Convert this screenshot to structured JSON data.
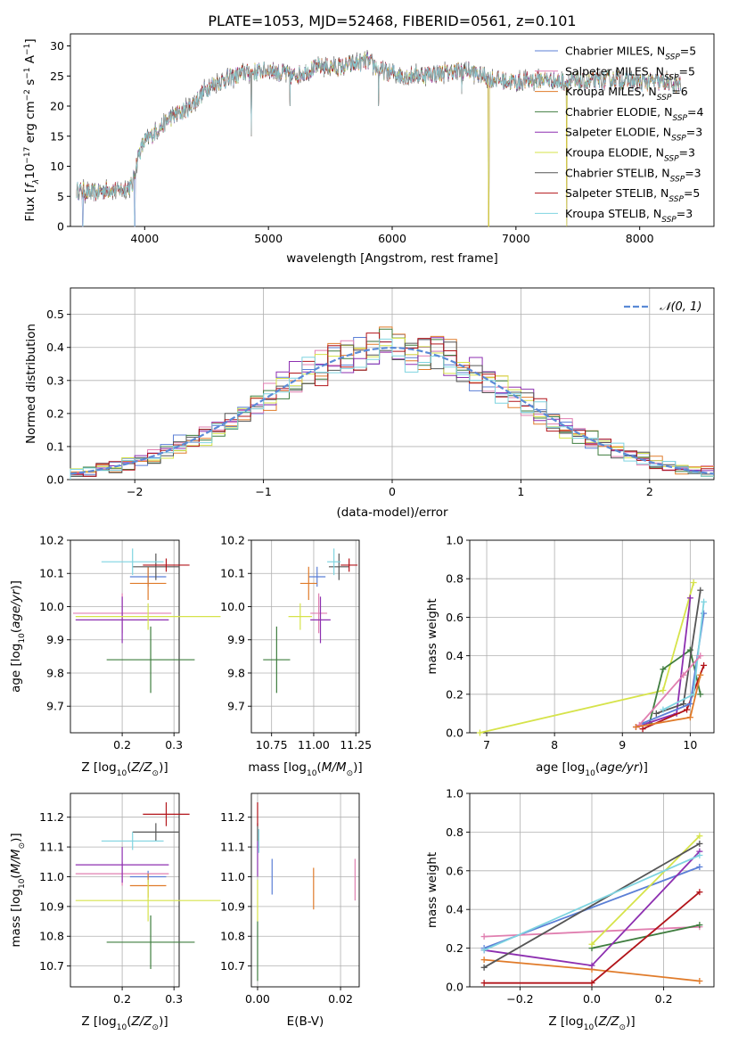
{
  "figure_title": "PLATE=1053, MJD=52468, FIBERID=0561, z=0.101",
  "colors": {
    "Chabrier MILES": "#5b7fd6",
    "Salpeter MILES": "#e07fb0",
    "Kroupa MILES": "#e07b2a",
    "Chabrier ELODIE": "#3f7d3f",
    "Salpeter ELODIE": "#8d2fb0",
    "Kroupa ELODIE": "#d6e34a",
    "Chabrier STELIB": "#555555",
    "Salpeter STELIB": "#b2141a",
    "Kroupa STELIB": "#7fd4e0",
    "gauss": "#5b8ad6"
  },
  "chart_data": [
    {
      "id": "spectrum",
      "type": "line",
      "title": "PLATE=1053, MJD=52468, FIBERID=0561, z=0.101",
      "xlabel": "wavelength [Angstrom, rest frame]",
      "ylabel": "Flux [f_λ10^-17 erg cm^-2 s^-1 A^-1]",
      "xlim": [
        3400,
        8600
      ],
      "ylim": [
        0,
        32
      ],
      "xticks": [
        4000,
        5000,
        6000,
        7000,
        8000
      ],
      "yticks": [
        0,
        5,
        10,
        15,
        20,
        25,
        30
      ],
      "legend_position": "top-right",
      "legend": [
        {
          "label": "Chabrier MILES, N",
          "sub": "SSP",
          "suffix": "=5",
          "key": "Chabrier MILES"
        },
        {
          "label": "Salpeter MILES, N",
          "sub": "SSP",
          "suffix": "=5",
          "key": "Salpeter MILES"
        },
        {
          "label": "Kroupa MILES, N",
          "sub": "SSP",
          "suffix": "=6",
          "key": "Kroupa MILES"
        },
        {
          "label": "Chabrier ELODIE, N",
          "sub": "SSP",
          "suffix": "=4",
          "key": "Chabrier ELODIE"
        },
        {
          "label": "Salpeter ELODIE, N",
          "sub": "SSP",
          "suffix": "=3",
          "key": "Salpeter ELODIE"
        },
        {
          "label": "Kroupa ELODIE, N",
          "sub": "SSP",
          "suffix": "=3",
          "key": "Kroupa ELODIE"
        },
        {
          "label": "Chabrier STELIB, N",
          "sub": "SSP",
          "suffix": "=3",
          "key": "Chabrier STELIB"
        },
        {
          "label": "Salpeter STELIB, N",
          "sub": "SSP",
          "suffix": "=5",
          "key": "Salpeter STELIB"
        },
        {
          "label": "Kroupa STELIB, N",
          "sub": "SSP",
          "suffix": "=3",
          "key": "Kroupa STELIB"
        }
      ],
      "continuum": [
        [
          3450,
          6
        ],
        [
          3600,
          5.5
        ],
        [
          3700,
          6.2
        ],
        [
          3800,
          6
        ],
        [
          3900,
          6.8
        ],
        [
          3950,
          12
        ],
        [
          4000,
          14
        ],
        [
          4100,
          16
        ],
        [
          4200,
          18
        ],
        [
          4300,
          19
        ],
        [
          4400,
          20.5
        ],
        [
          4500,
          23
        ],
        [
          4600,
          24
        ],
        [
          4800,
          25.5
        ],
        [
          5000,
          26
        ],
        [
          5200,
          25
        ],
        [
          5400,
          26.5
        ],
        [
          5600,
          26.5
        ],
        [
          5800,
          27.5
        ],
        [
          5900,
          26
        ],
        [
          6100,
          25
        ],
        [
          6400,
          25.5
        ],
        [
          6600,
          26
        ],
        [
          6800,
          24.5
        ],
        [
          7000,
          24
        ],
        [
          7200,
          24.5
        ],
        [
          7400,
          24
        ],
        [
          7600,
          24
        ],
        [
          7800,
          24.5
        ],
        [
          8000,
          24
        ],
        [
          8200,
          24
        ],
        [
          8330,
          23.5
        ]
      ],
      "dips": [
        [
          3500,
          0
        ],
        [
          3920,
          0
        ],
        [
          4861,
          15
        ],
        [
          5175,
          20
        ],
        [
          5890,
          20
        ],
        [
          6563,
          22
        ],
        [
          6780,
          0
        ],
        [
          7410,
          0
        ]
      ]
    },
    {
      "id": "residuals",
      "type": "histogram",
      "xlabel": "(data-model)/error",
      "ylabel": "Normed distribution",
      "xlim": [
        -2.5,
        2.5
      ],
      "ylim": [
        0,
        0.58
      ],
      "xticks": [
        -2,
        -1,
        0,
        1,
        2
      ],
      "yticks": [
        0.0,
        0.1,
        0.2,
        0.3,
        0.4,
        0.5
      ],
      "legend_label": "𝒩(0, 1)",
      "legend_position": "top-right",
      "bin_width": 0.1,
      "series_keys": [
        "Chabrier MILES",
        "Salpeter MILES",
        "Kroupa MILES",
        "Chabrier ELODIE",
        "Salpeter ELODIE",
        "Kroupa ELODIE",
        "Chabrier STELIB",
        "Salpeter STELIB",
        "Kroupa STELIB"
      ]
    },
    {
      "id": "age-vs-Z",
      "type": "scatter",
      "xlabel": "Z [log10(Z/Z⊙)]",
      "ylabel": "age  [log10(age/yr)]",
      "xlim": [
        0.1,
        0.31
      ],
      "ylim": [
        9.62,
        10.2
      ],
      "xticks": [
        0.2,
        0.3
      ],
      "yticks": [
        9.7,
        9.8,
        9.9,
        10.0,
        10.1,
        10.2
      ],
      "points": [
        {
          "key": "Chabrier MILES",
          "x": 0.25,
          "y": 10.09,
          "xerr": 0.035,
          "yerr": 0.03
        },
        {
          "key": "Salpeter MILES",
          "x": 0.2,
          "y": 9.98,
          "xerr": 0.095,
          "yerr": 0.06
        },
        {
          "key": "Kroupa MILES",
          "x": 0.25,
          "y": 10.07,
          "xerr": 0.035,
          "yerr": 0.05
        },
        {
          "key": "Chabrier ELODIE",
          "x": 0.255,
          "y": 9.84,
          "xerr": 0.085,
          "yerr": 0.1
        },
        {
          "key": "Salpeter ELODIE",
          "x": 0.2,
          "y": 9.96,
          "xerr": 0.09,
          "yerr": 0.07
        },
        {
          "key": "Kroupa ELODIE",
          "x": 0.25,
          "y": 9.97,
          "xerr": 0.14,
          "yerr": 0.04
        },
        {
          "key": "Chabrier STELIB",
          "x": 0.265,
          "y": 10.12,
          "xerr": 0.045,
          "yerr": 0.04
        },
        {
          "key": "Salpeter STELIB",
          "x": 0.285,
          "y": 10.125,
          "xerr": 0.045,
          "yerr": 0.02
        },
        {
          "key": "Kroupa STELIB",
          "x": 0.22,
          "y": 10.135,
          "xerr": 0.06,
          "yerr": 0.04
        }
      ]
    },
    {
      "id": "age-vs-mass",
      "type": "scatter",
      "xlabel": "mass [log10(M/M⊙)]",
      "ylabel": "",
      "xlim": [
        10.63,
        11.27
      ],
      "ylim": [
        9.62,
        10.2
      ],
      "xticks": [
        10.75,
        11.0,
        11.25
      ],
      "xtick_labels": [
        "10.75",
        "11.00",
        "11.25"
      ],
      "yticks": [
        9.7,
        9.8,
        9.9,
        10.0,
        10.1,
        10.2
      ],
      "points": [
        {
          "key": "Chabrier MILES",
          "x": 11.02,
          "y": 10.09,
          "xerr": 0.05,
          "yerr": 0.03
        },
        {
          "key": "Salpeter MILES",
          "x": 11.03,
          "y": 9.98,
          "xerr": 0.05,
          "yerr": 0.06
        },
        {
          "key": "Kroupa MILES",
          "x": 10.97,
          "y": 10.07,
          "xerr": 0.05,
          "yerr": 0.05
        },
        {
          "key": "Chabrier ELODIE",
          "x": 10.78,
          "y": 9.84,
          "xerr": 0.08,
          "yerr": 0.1
        },
        {
          "key": "Salpeter ELODIE",
          "x": 11.04,
          "y": 9.96,
          "xerr": 0.06,
          "yerr": 0.07
        },
        {
          "key": "Kroupa ELODIE",
          "x": 10.92,
          "y": 9.97,
          "xerr": 0.07,
          "yerr": 0.04
        },
        {
          "key": "Chabrier STELIB",
          "x": 11.15,
          "y": 10.12,
          "xerr": 0.06,
          "yerr": 0.04
        },
        {
          "key": "Salpeter STELIB",
          "x": 11.21,
          "y": 10.125,
          "xerr": 0.05,
          "yerr": 0.02
        },
        {
          "key": "Kroupa STELIB",
          "x": 11.12,
          "y": 10.135,
          "xerr": 0.04,
          "yerr": 0.04
        }
      ]
    },
    {
      "id": "massweight-vs-age",
      "type": "line",
      "xlabel": "age  [log10(age/yr)]",
      "ylabel": "mass weight",
      "xlim": [
        6.75,
        10.35
      ],
      "ylim": [
        0,
        1
      ],
      "xticks": [
        7,
        8,
        9,
        10
      ],
      "yticks": [
        0.0,
        0.2,
        0.4,
        0.6,
        0.8,
        1.0
      ],
      "ytick_labels": [
        "0.0",
        "0.2",
        "0.4",
        "0.6",
        "0.8",
        "1.0"
      ],
      "series": [
        {
          "key": "Kroupa ELODIE",
          "x": [
            6.9,
            9.6,
            10.05
          ],
          "y": [
            0.0,
            0.22,
            0.78
          ]
        },
        {
          "key": "Chabrier ELODIE",
          "x": [
            9.4,
            9.6,
            10.0,
            10.15
          ],
          "y": [
            0.05,
            0.33,
            0.43,
            0.2
          ]
        },
        {
          "key": "Salpeter ELODIE",
          "x": [
            9.2,
            9.8,
            10.0
          ],
          "y": [
            0.03,
            0.1,
            0.7
          ]
        },
        {
          "key": "Chabrier STELIB",
          "x": [
            9.5,
            9.9,
            10.15
          ],
          "y": [
            0.1,
            0.15,
            0.74
          ]
        },
        {
          "key": "Salpeter STELIB",
          "x": [
            9.3,
            9.95,
            10.2
          ],
          "y": [
            0.02,
            0.12,
            0.35
          ]
        },
        {
          "key": "Chabrier MILES",
          "x": [
            9.3,
            10.0,
            10.2
          ],
          "y": [
            0.05,
            0.15,
            0.62
          ]
        },
        {
          "key": "Kroupa STELIB",
          "x": [
            9.6,
            10.05,
            10.2
          ],
          "y": [
            0.12,
            0.2,
            0.68
          ]
        },
        {
          "key": "Salpeter MILES",
          "x": [
            9.25,
            9.9,
            10.15
          ],
          "y": [
            0.04,
            0.3,
            0.4
          ]
        },
        {
          "key": "Kroupa MILES",
          "x": [
            9.2,
            10.0,
            10.15
          ],
          "y": [
            0.03,
            0.08,
            0.3
          ]
        }
      ]
    },
    {
      "id": "mass-vs-Z",
      "type": "scatter",
      "xlabel": "Z [log10(Z/Z⊙)]",
      "ylabel": "mass [log10(M/M⊙)]",
      "xlim": [
        0.1,
        0.31
      ],
      "ylim": [
        10.63,
        11.28
      ],
      "xticks": [
        0.2,
        0.3
      ],
      "yticks": [
        10.7,
        10.8,
        10.9,
        11.0,
        11.1,
        11.2
      ],
      "points": [
        {
          "key": "Chabrier MILES",
          "x": 0.25,
          "y": 11.0,
          "xerr": 0.035,
          "yerr": 0.02
        },
        {
          "key": "Salpeter MILES",
          "x": 0.2,
          "y": 11.01,
          "xerr": 0.09,
          "yerr": 0.04
        },
        {
          "key": "Kroupa MILES",
          "x": 0.25,
          "y": 10.97,
          "xerr": 0.035,
          "yerr": 0.04
        },
        {
          "key": "Chabrier ELODIE",
          "x": 0.255,
          "y": 10.78,
          "xerr": 0.085,
          "yerr": 0.09
        },
        {
          "key": "Salpeter ELODIE",
          "x": 0.2,
          "y": 11.04,
          "xerr": 0.09,
          "yerr": 0.06
        },
        {
          "key": "Kroupa ELODIE",
          "x": 0.25,
          "y": 10.92,
          "xerr": 0.14,
          "yerr": 0.07
        },
        {
          "key": "Chabrier STELIB",
          "x": 0.265,
          "y": 11.15,
          "xerr": 0.045,
          "yerr": 0.03
        },
        {
          "key": "Salpeter STELIB",
          "x": 0.285,
          "y": 11.21,
          "xerr": 0.045,
          "yerr": 0.04
        },
        {
          "key": "Kroupa STELIB",
          "x": 0.22,
          "y": 11.12,
          "xerr": 0.06,
          "yerr": 0.03
        }
      ]
    },
    {
      "id": "mass-vs-ebv",
      "type": "scatter",
      "xlabel": "E(B-V)",
      "ylabel": "",
      "xlim": [
        -0.0015,
        0.0245
      ],
      "ylim": [
        10.63,
        11.28
      ],
      "xticks": [
        0.0,
        0.02
      ],
      "xtick_labels": [
        "0.00",
        "0.02"
      ],
      "yticks": [
        10.7,
        10.8,
        10.9,
        11.0,
        11.1,
        11.2
      ],
      "points": [
        {
          "key": "Chabrier MILES",
          "x": 0.0035,
          "y": 11.0,
          "xerr": 0,
          "yerr": 0.06
        },
        {
          "key": "Salpeter MILES",
          "x": 0.0235,
          "y": 10.99,
          "xerr": 0,
          "yerr": 0.07
        },
        {
          "key": "Kroupa MILES",
          "x": 0.0135,
          "y": 10.96,
          "xerr": 0,
          "yerr": 0.07
        },
        {
          "key": "Chabrier ELODIE",
          "x": 0.0,
          "y": 10.75,
          "xerr": 0,
          "yerr": 0.1
        },
        {
          "key": "Salpeter ELODIE",
          "x": 0.0,
          "y": 11.06,
          "xerr": 0,
          "yerr": 0.06
        },
        {
          "key": "Kroupa ELODIE",
          "x": 0.0,
          "y": 10.92,
          "xerr": 0,
          "yerr": 0.07
        },
        {
          "key": "Chabrier STELIB",
          "x": 0.0,
          "y": 11.15,
          "xerr": 0,
          "yerr": 0.03
        },
        {
          "key": "Salpeter STELIB",
          "x": 0.0,
          "y": 11.21,
          "xerr": 0,
          "yerr": 0.04
        },
        {
          "key": "Kroupa STELIB",
          "x": 0.0003,
          "y": 11.12,
          "xerr": 0,
          "yerr": 0.04
        }
      ]
    },
    {
      "id": "massweight-vs-Z",
      "type": "line",
      "xlabel": "Z [log10(Z/Z⊙)]",
      "ylabel": "mass weight",
      "xlim": [
        -0.34,
        0.34
      ],
      "ylim": [
        0,
        1
      ],
      "xticks": [
        -0.2,
        0.0,
        0.2
      ],
      "xtick_labels": [
        "−0.2",
        "0.0",
        "0.2"
      ],
      "yticks": [
        0.0,
        0.2,
        0.4,
        0.6,
        0.8,
        1.0
      ],
      "ytick_labels": [
        "0.0",
        "0.2",
        "0.4",
        "0.6",
        "0.8",
        "1.0"
      ],
      "series": [
        {
          "key": "Chabrier MILES",
          "x": [
            -0.3,
            0.3
          ],
          "y": [
            0.2,
            0.62
          ]
        },
        {
          "key": "Salpeter MILES",
          "x": [
            -0.3,
            0.3
          ],
          "y": [
            0.26,
            0.31
          ]
        },
        {
          "key": "Kroupa MILES",
          "x": [
            -0.3,
            0.0,
            0.3
          ],
          "y": [
            0.14,
            0.09,
            0.03
          ]
        },
        {
          "key": "Chabrier ELODIE",
          "x": [
            0.0,
            0.3
          ],
          "y": [
            0.2,
            0.32
          ]
        },
        {
          "key": "Salpeter ELODIE",
          "x": [
            -0.3,
            0.0,
            0.3
          ],
          "y": [
            0.19,
            0.11,
            0.7
          ]
        },
        {
          "key": "Kroupa ELODIE",
          "x": [
            0.0,
            0.3
          ],
          "y": [
            0.22,
            0.78
          ]
        },
        {
          "key": "Chabrier STELIB",
          "x": [
            -0.3,
            0.3
          ],
          "y": [
            0.1,
            0.74
          ]
        },
        {
          "key": "Salpeter STELIB",
          "x": [
            -0.3,
            0.0,
            0.3
          ],
          "y": [
            0.02,
            0.02,
            0.49
          ]
        },
        {
          "key": "Kroupa STELIB",
          "x": [
            -0.3,
            0.3
          ],
          "y": [
            0.19,
            0.68
          ]
        }
      ]
    }
  ]
}
